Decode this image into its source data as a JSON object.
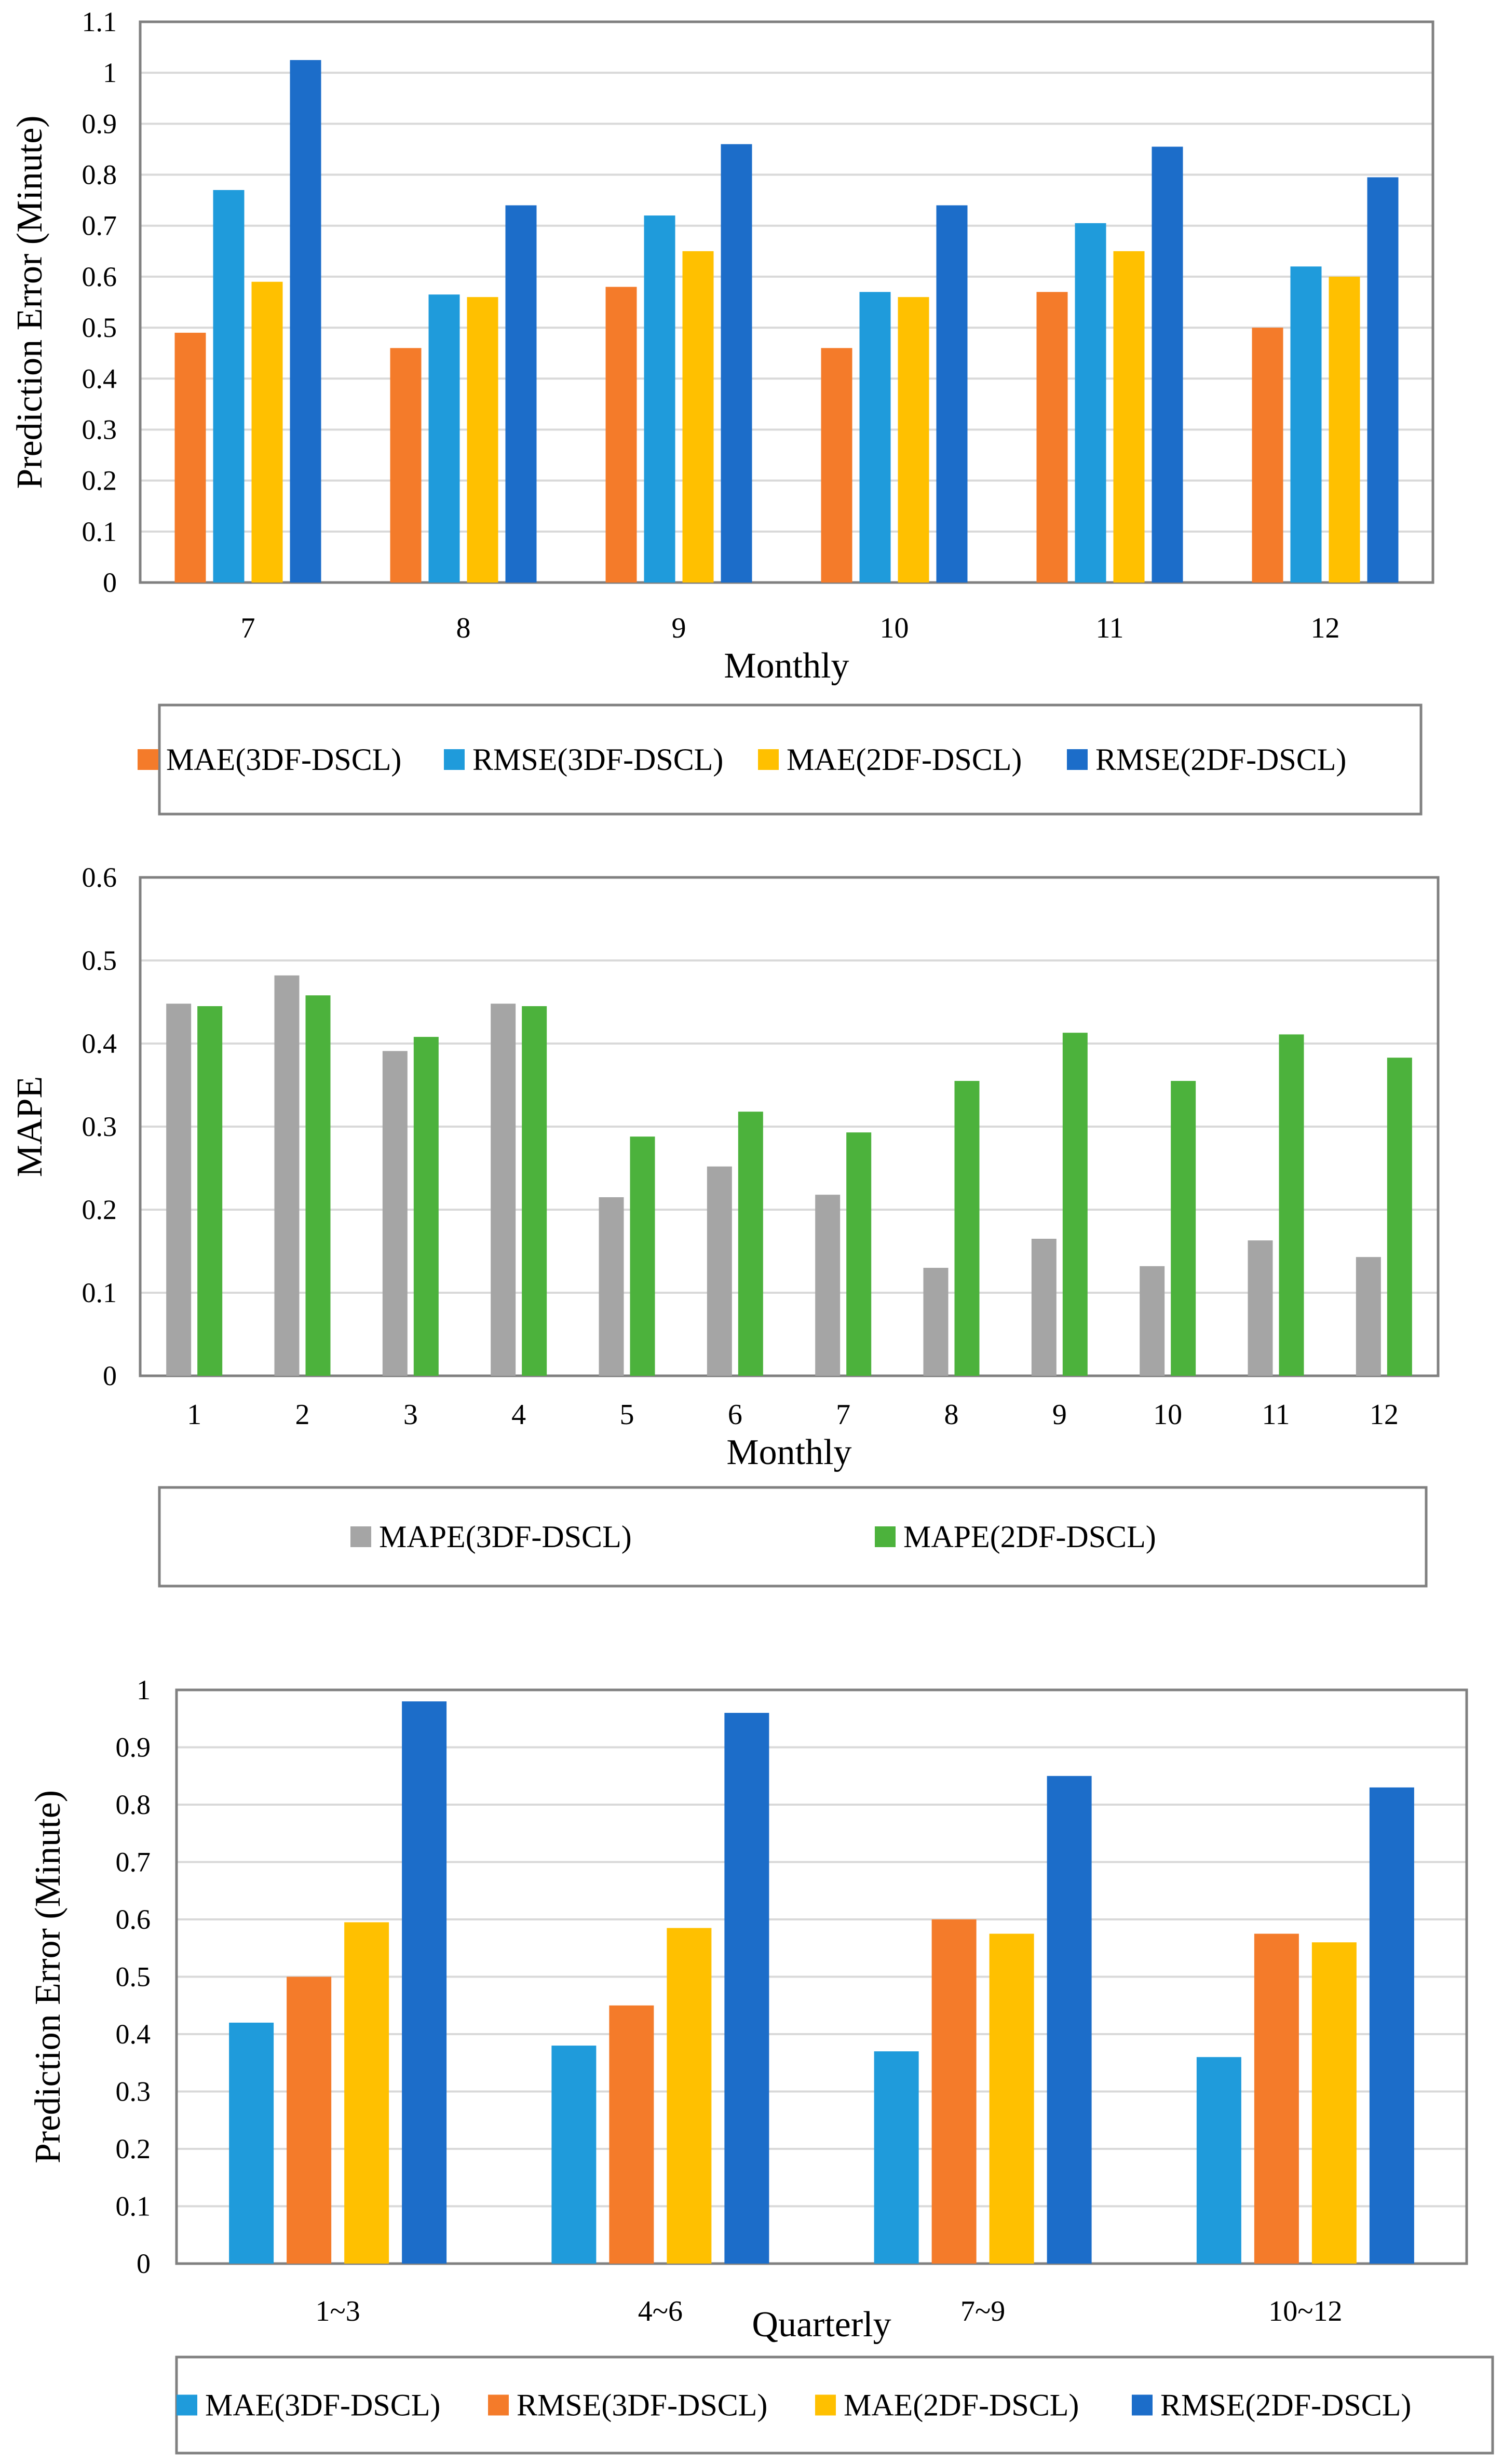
{
  "chart_data": [
    {
      "type": "bar",
      "xlabel": "Monthly",
      "ylabel": "Prediction Error (Minute)",
      "ylim": [
        0,
        1.1
      ],
      "yticks": [
        "0",
        "0.1",
        "0.2",
        "0.3",
        "0.4",
        "0.5",
        "0.6",
        "0.7",
        "0.8",
        "0.9",
        "1",
        "1.1"
      ],
      "categories": [
        "7",
        "8",
        "9",
        "10",
        "11",
        "12"
      ],
      "grid": true,
      "legend_position": "bottom",
      "series": [
        {
          "name": "MAE(3DF-DSCL)",
          "color": "#F47B2A",
          "values": [
            0.49,
            0.46,
            0.58,
            0.46,
            0.57,
            0.5
          ]
        },
        {
          "name": "RMSE(3DF-DSCL)",
          "color": "#1F9BDB",
          "values": [
            0.77,
            0.565,
            0.72,
            0.57,
            0.705,
            0.62
          ]
        },
        {
          "name": "MAE(2DF-DSCL)",
          "color": "#FFC000",
          "values": [
            0.59,
            0.56,
            0.65,
            0.56,
            0.65,
            0.6
          ]
        },
        {
          "name": "RMSE(2DF-DSCL)",
          "color": "#1C6DC9",
          "values": [
            1.025,
            0.74,
            0.86,
            0.74,
            0.855,
            0.795
          ]
        }
      ]
    },
    {
      "type": "bar",
      "xlabel": "Monthly",
      "ylabel": "MAPE",
      "ylim": [
        0,
        0.6
      ],
      "yticks": [
        "0",
        "0.1",
        "0.2",
        "0.3",
        "0.4",
        "0.5",
        "0.6"
      ],
      "categories": [
        "1",
        "2",
        "3",
        "4",
        "5",
        "6",
        "7",
        "8",
        "9",
        "10",
        "11",
        "12"
      ],
      "grid": true,
      "legend_position": "bottom",
      "series": [
        {
          "name": "MAPE(3DF-DSCL)",
          "color": "#A5A5A5",
          "values": [
            0.448,
            0.482,
            0.391,
            0.448,
            0.215,
            0.252,
            0.218,
            0.13,
            0.165,
            0.132,
            0.163,
            0.143
          ]
        },
        {
          "name": "MAPE(2DF-DSCL)",
          "color": "#4CB23C",
          "values": [
            0.445,
            0.458,
            0.408,
            0.445,
            0.288,
            0.318,
            0.293,
            0.355,
            0.413,
            0.355,
            0.411,
            0.383
          ]
        }
      ]
    },
    {
      "type": "bar",
      "xlabel": "Quarterly",
      "ylabel": "Prediction Error (Minute)",
      "ylim": [
        0,
        1
      ],
      "yticks": [
        "0",
        "0.1",
        "0.2",
        "0.3",
        "0.4",
        "0.5",
        "0.6",
        "0.7",
        "0.8",
        "0.9",
        "1"
      ],
      "categories": [
        "1~3",
        "4~6",
        "7~9",
        "10~12"
      ],
      "grid": true,
      "legend_position": "bottom",
      "series": [
        {
          "name": "MAE(3DF-DSCL)",
          "color": "#1F9BDB",
          "values": [
            0.42,
            0.38,
            0.37,
            0.36
          ]
        },
        {
          "name": "RMSE(3DF-DSCL)",
          "color": "#F47B2A",
          "values": [
            0.5,
            0.45,
            0.6,
            0.575
          ]
        },
        {
          "name": "MAE(2DF-DSCL)",
          "color": "#FFC000",
          "values": [
            0.595,
            0.585,
            0.575,
            0.56
          ]
        },
        {
          "name": "RMSE(2DF-DSCL)",
          "color": "#1C6DC9",
          "values": [
            0.98,
            0.96,
            0.85,
            0.83
          ]
        }
      ]
    }
  ]
}
